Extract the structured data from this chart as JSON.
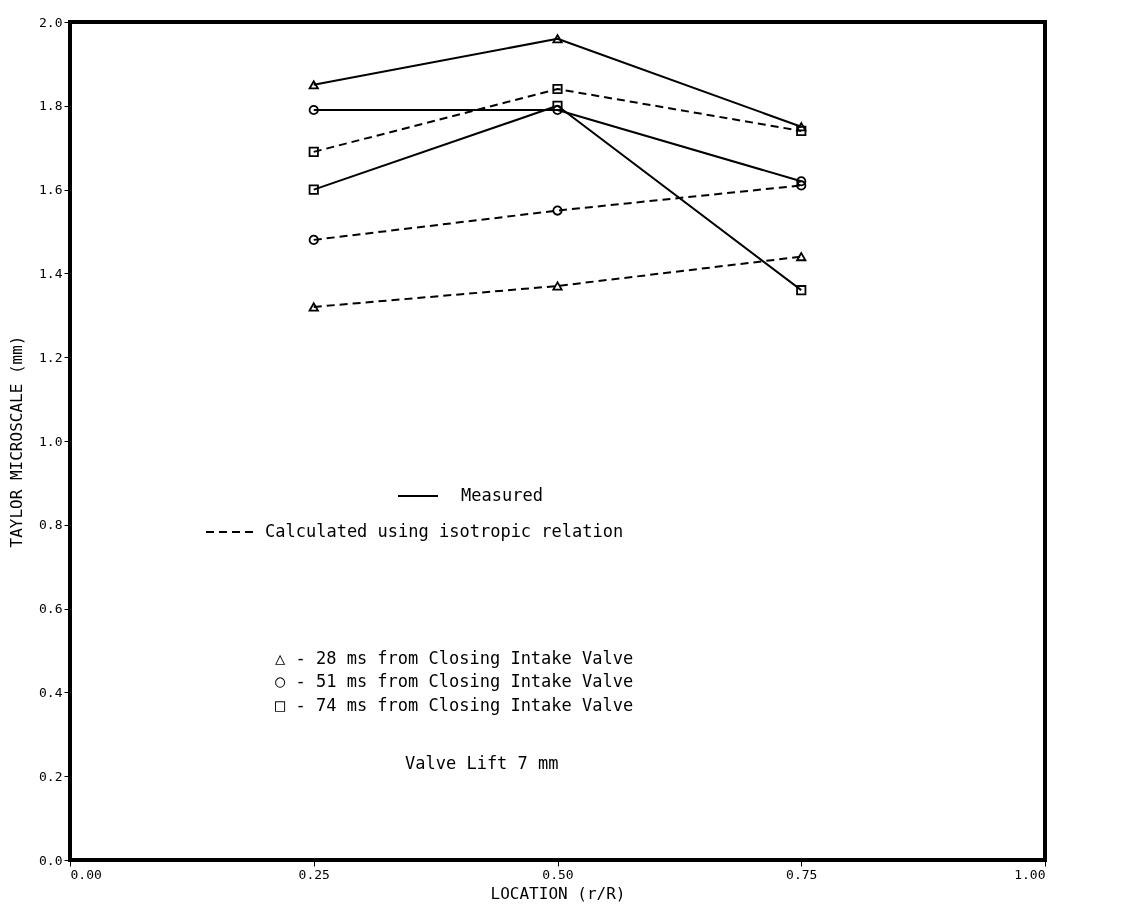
{
  "chart_data": {
    "type": "line",
    "xlabel": "LOCATION (r/R)",
    "ylabel": "TAYLOR MICROSCALE (mm)",
    "x": [
      0.25,
      0.5,
      0.75
    ],
    "xlim": [
      0,
      1
    ],
    "ylim": [
      0,
      2
    ],
    "xticks": [
      {
        "value": 0,
        "label": "0.00"
      },
      0.25,
      {
        "value": 0.5,
        "label": "0.50"
      },
      0.75,
      {
        "value": 1,
        "label": "1.00"
      }
    ],
    "yticks": [
      {
        "value": 0,
        "label": "0.0"
      },
      0.2,
      0.4,
      0.6,
      0.8,
      {
        "value": 1,
        "label": "1.0"
      },
      1.2,
      1.4,
      1.6,
      1.8,
      {
        "value": 2,
        "label": "2.0"
      }
    ],
    "grid": false,
    "series": [
      {
        "color": "#000000",
        "marker": "triangle",
        "line_style": "solid",
        "values": [
          1.85,
          1.96,
          1.75
        ]
      },
      {
        "color": "#000000",
        "marker": "circle",
        "line_style": "solid",
        "values": [
          1.79,
          1.79,
          1.62
        ]
      },
      {
        "color": "#000000",
        "marker": "square",
        "line_style": "solid",
        "values": [
          1.6,
          1.8,
          1.36
        ]
      },
      {
        "color": "#000000",
        "marker": "triangle",
        "line_style": "dashed",
        "values": [
          1.32,
          1.37,
          1.44
        ]
      },
      {
        "color": "#000000",
        "marker": "circle",
        "line_style": "dashed",
        "values": [
          1.48,
          1.55,
          1.61
        ]
      },
      {
        "color": "#000000",
        "marker": "square",
        "line_style": "dashed",
        "values": [
          1.69,
          1.84,
          1.74
        ]
      }
    ],
    "annotations": [
      "Measured",
      "Calculated using isotropic relation",
      "△ - 28 ms from Closing Intake Valve",
      "○ - 51 ms from Closing Intake Valve",
      "□ - 74 ms from Closing Intake Valve",
      "Valve Lift 7 mm"
    ]
  }
}
